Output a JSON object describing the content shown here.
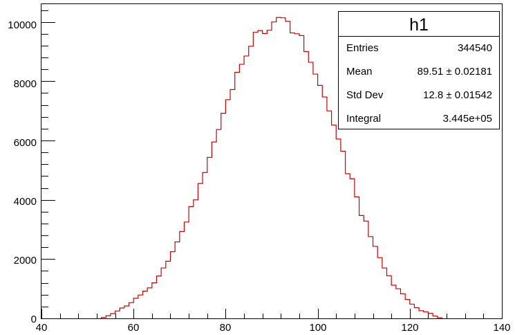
{
  "chart_data": {
    "type": "bar",
    "title": "",
    "xlabel": "",
    "ylabel": "",
    "xlim": [
      40,
      140
    ],
    "ylim": [
      0,
      10600
    ],
    "xticks": [
      "40",
      "60",
      "80",
      "100",
      "120",
      "140"
    ],
    "yticks": [
      "0",
      "2000",
      "4000",
      "6000",
      "8000",
      "10000"
    ],
    "bin_width": 1,
    "series": [
      {
        "x": [
          53,
          54,
          55,
          56,
          57,
          58,
          59,
          60,
          61,
          62,
          63,
          64,
          65,
          66,
          67,
          68,
          69,
          70,
          71,
          72,
          73,
          74,
          75,
          76,
          77,
          78,
          79,
          80,
          81,
          82,
          83,
          84,
          85,
          86,
          87,
          88,
          89,
          90,
          91,
          92,
          93,
          94,
          95,
          96,
          97,
          98,
          99,
          100,
          101,
          102,
          103,
          104,
          105,
          106,
          107,
          108,
          109,
          110,
          111,
          112,
          113,
          114,
          115,
          116,
          117,
          118,
          119,
          120,
          121,
          122,
          123,
          124,
          125,
          126
        ],
        "values": [
          30,
          90,
          160,
          250,
          350,
          420,
          530,
          680,
          790,
          920,
          1030,
          1200,
          1430,
          1700,
          1930,
          2250,
          2580,
          2930,
          3250,
          3770,
          4000,
          4550,
          4920,
          5430,
          5950,
          6370,
          6920,
          7380,
          7720,
          8300,
          8570,
          8850,
          9180,
          9650,
          9710,
          9610,
          9720,
          10000,
          10150,
          10140,
          10020,
          9630,
          9600,
          9540,
          9000,
          8640,
          8240,
          7860,
          7470,
          7000,
          6520,
          6050,
          5640,
          4880,
          4710,
          4100,
          3470,
          3280,
          2760,
          2430,
          2050,
          1700,
          1440,
          1120,
          1000,
          830,
          640,
          480,
          360,
          260,
          220,
          170,
          80,
          20
        ],
        "color": "#d00000"
      }
    ]
  },
  "stats": {
    "title": "h1",
    "rows": [
      {
        "label": "Entries",
        "value": "344540"
      },
      {
        "label": "Mean",
        "value": "89.51 ± 0.02181"
      },
      {
        "label": "Std Dev",
        "value": "12.8 ± 0.01542"
      },
      {
        "label": "Integral",
        "value": "3.445e+05"
      }
    ]
  }
}
